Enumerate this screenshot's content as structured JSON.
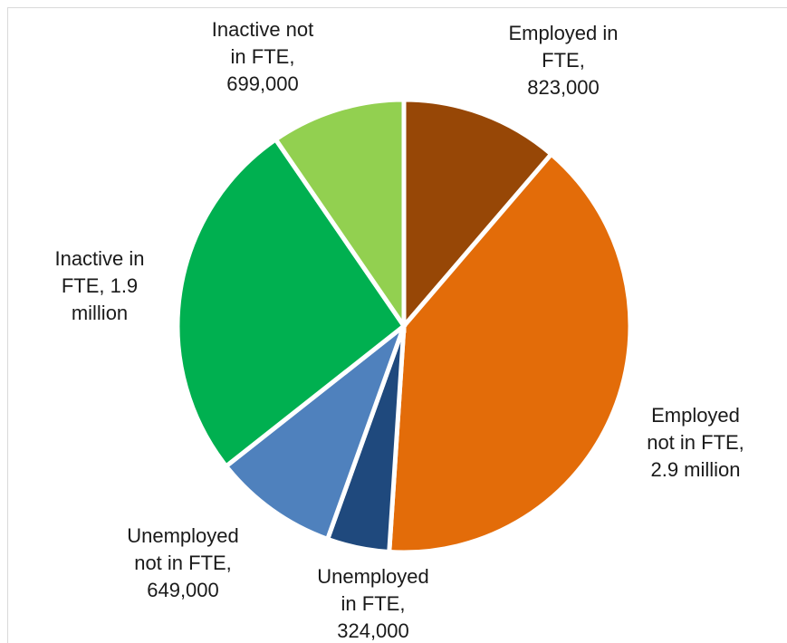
{
  "chart_data": {
    "type": "pie",
    "slices": [
      {
        "name": "Employed in FTE",
        "value": 823000,
        "label_lines": [
          "Employed in",
          "FTE,",
          "823,000"
        ],
        "color": "#974706"
      },
      {
        "name": "Employed not in FTE",
        "value": 2900000,
        "label_lines": [
          "Employed",
          "not in FTE,",
          "2.9 million"
        ],
        "color": "#E36C09"
      },
      {
        "name": "Unemployed in FTE",
        "value": 324000,
        "label_lines": [
          "Unemployed",
          "in FTE,",
          "324,000"
        ],
        "color": "#1F497D"
      },
      {
        "name": "Unemployed not in FTE",
        "value": 649000,
        "label_lines": [
          "Unemployed",
          "not in FTE,",
          "649,000"
        ],
        "color": "#4F81BD"
      },
      {
        "name": "Inactive in FTE",
        "value": 1900000,
        "label_lines": [
          "Inactive in",
          "FTE, 1.9",
          "million"
        ],
        "color": "#00B050"
      },
      {
        "name": "Inactive not in FTE",
        "value": 699000,
        "label_lines": [
          "Inactive not",
          "in FTE,",
          "699,000"
        ],
        "color": "#92D050"
      }
    ],
    "legend": "none",
    "start_angle": "12 o'clock, clockwise"
  }
}
